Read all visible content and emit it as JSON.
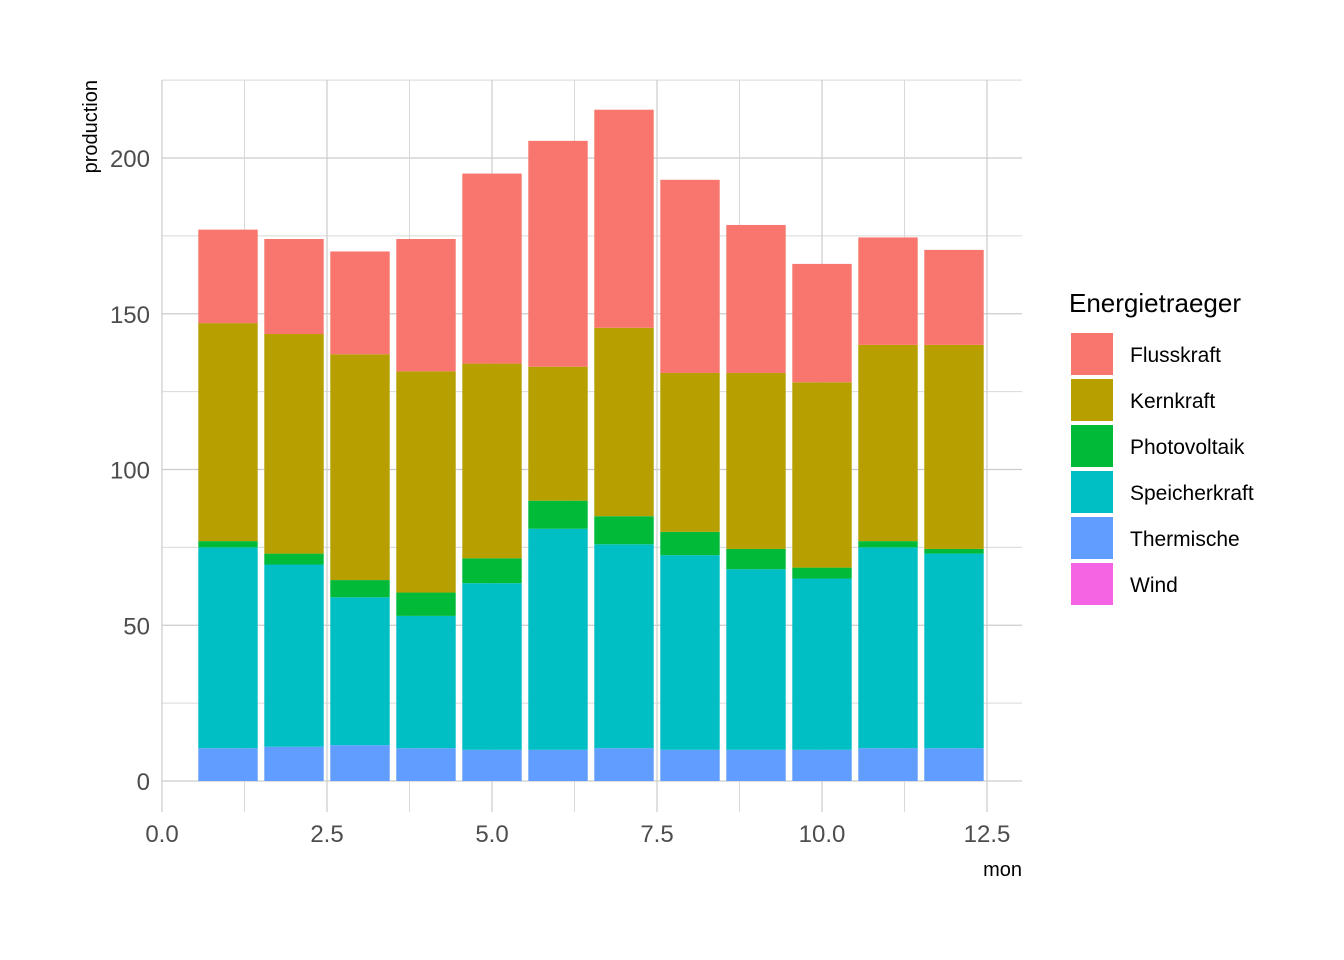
{
  "chart_data": {
    "type": "bar",
    "stacked": true,
    "xlabel": "mon",
    "ylabel": "production",
    "xlim": [
      0,
      13
    ],
    "ylim": [
      -10,
      225
    ],
    "x_ticks": [
      0,
      2.5,
      5,
      7.5,
      10,
      12.5
    ],
    "x_tick_labels": [
      "0.0",
      "2.5",
      "5.0",
      "7.5",
      "10.0",
      "12.5"
    ],
    "y_ticks": [
      0,
      50,
      100,
      150,
      200
    ],
    "y_tick_labels": [
      "0",
      "50",
      "100",
      "150",
      "200"
    ],
    "x": [
      1,
      2,
      3,
      4,
      5,
      6,
      7,
      8,
      9,
      10,
      11,
      12
    ],
    "legend": {
      "title": "Energietraeger",
      "position": "right"
    },
    "series": [
      {
        "name": "Flusskraft",
        "color": "#F8766D",
        "values": [
          30,
          30.5,
          33,
          42.5,
          61,
          72.5,
          70,
          62,
          47.5,
          38,
          34.5,
          30.5
        ]
      },
      {
        "name": "Kernkraft",
        "color": "#B79F00",
        "values": [
          70,
          70.5,
          72.5,
          71,
          62.5,
          43,
          60.5,
          51,
          56.5,
          59.5,
          63,
          65.5
        ]
      },
      {
        "name": "Photovoltaik",
        "color": "#00BA38",
        "values": [
          2,
          3.5,
          5.5,
          7.5,
          8,
          9,
          9,
          7.5,
          6.5,
          3.5,
          2,
          1.5
        ]
      },
      {
        "name": "Speicherkraft",
        "color": "#00BFC4",
        "values": [
          64.5,
          58.5,
          47.5,
          42.5,
          53.5,
          71,
          65.5,
          62.5,
          58,
          55,
          64.5,
          62.5
        ]
      },
      {
        "name": "Thermische",
        "color": "#619CFF",
        "values": [
          10.5,
          11,
          11.5,
          10.5,
          10,
          10,
          10.5,
          10,
          10,
          10,
          10.5,
          10.5
        ]
      },
      {
        "name": "Wind",
        "color": "#F564E3",
        "values": [
          0,
          0,
          0,
          0,
          0,
          0,
          0,
          0,
          0,
          0,
          0,
          0
        ]
      }
    ]
  }
}
